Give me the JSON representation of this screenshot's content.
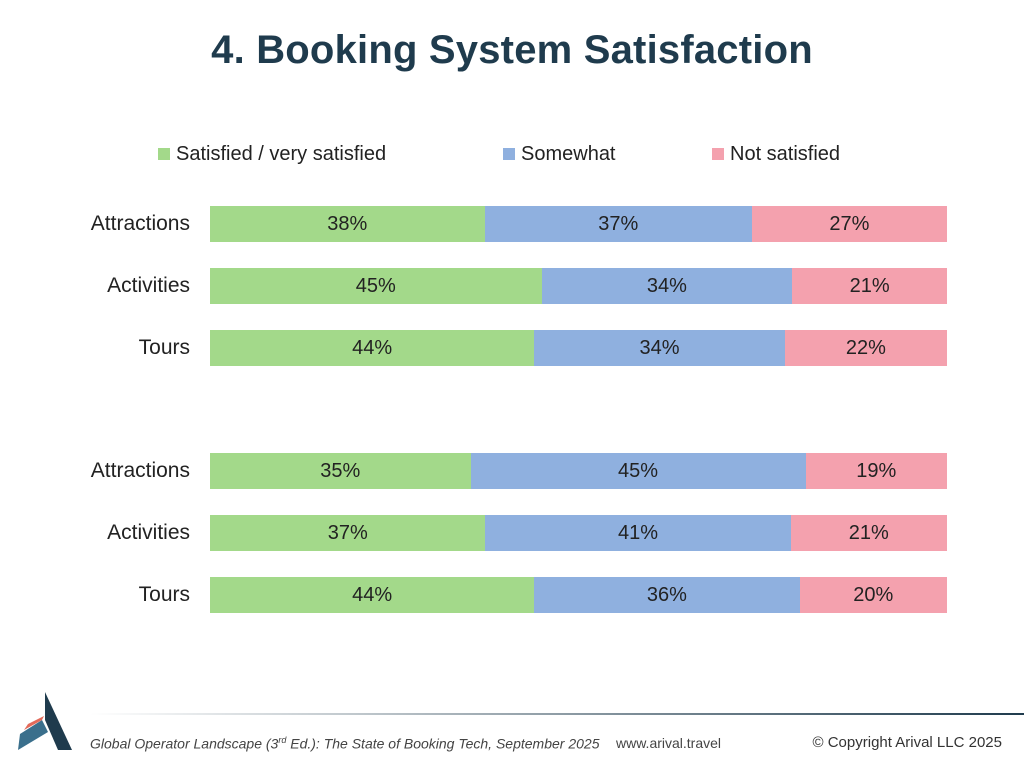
{
  "title": "4. Booking System Satisfaction",
  "colors": {
    "satisfied": "#a3d98a",
    "somewhat": "#8fb0df",
    "not_satisfied": "#f4a1ae",
    "title": "#1f3b4d"
  },
  "chart_data": {
    "type": "bar",
    "stacked": true,
    "orientation": "horizontal",
    "percent": true,
    "legend": [
      "Satisfied / very satisfied",
      "Somewhat",
      "Not satisfied"
    ],
    "legend_position": "top",
    "groups": [
      {
        "rows": [
          {
            "label": "Attractions",
            "values": [
              38,
              37,
              27
            ]
          },
          {
            "label": "Activities",
            "values": [
              45,
              34,
              21
            ]
          },
          {
            "label": "Tours",
            "values": [
              44,
              34,
              22
            ]
          }
        ]
      },
      {
        "rows": [
          {
            "label": "Attractions",
            "values": [
              35,
              45,
              19
            ]
          },
          {
            "label": "Activities",
            "values": [
              37,
              41,
              21
            ]
          },
          {
            "label": "Tours",
            "values": [
              44,
              36,
              20
            ]
          }
        ]
      }
    ]
  },
  "footer": {
    "source_prefix": "Global Operator Landscape (3",
    "source_sup": "rd",
    "source_suffix": " Ed.):  The State of Booking Tech, September 2025",
    "url": "www.arival.travel",
    "copyright": "© Copyright Arival LLC 2025"
  }
}
